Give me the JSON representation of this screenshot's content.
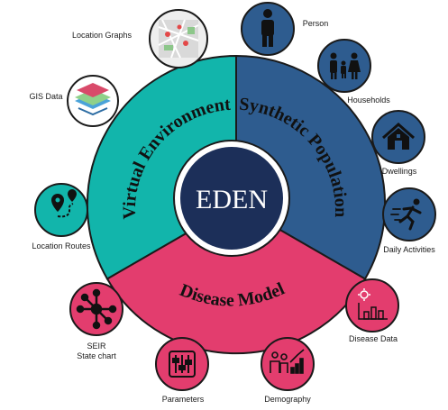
{
  "center": {
    "label": "EDEN"
  },
  "segments": {
    "virtual_environment": "Virtual Environment",
    "synthetic_population": "Synthetic Population",
    "disease_model": "Disease Model"
  },
  "nodes": {
    "location_graphs": "Location Graphs",
    "gis_data": "GIS Data",
    "location_routes": "Location Routes",
    "seir_line1": "SEIR",
    "seir_line2": "State chart",
    "parameters": "Parameters",
    "demography": "Demography",
    "disease_data": "Disease Data",
    "daily_activities": "Daily Activities",
    "dwellings": "Dwellings",
    "households": "Households",
    "person": "Person"
  },
  "colors": {
    "teal": "#12b5ab",
    "blue": "#2e5c8f",
    "pink": "#e33d6e",
    "navy": "#1c2f59"
  }
}
